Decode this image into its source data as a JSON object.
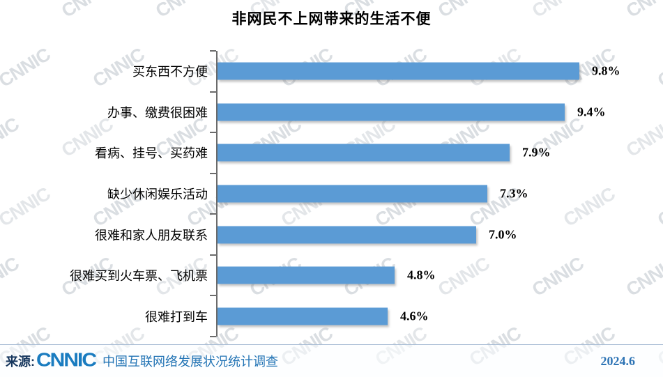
{
  "title": "非网民不上网带来的生活不便",
  "chart_data": {
    "type": "bar",
    "orientation": "horizontal",
    "title": "非网民不上网带来的生活不便",
    "categories": [
      "买东西不方便",
      "办事、缴费很困难",
      "看病、挂号、买药难",
      "缺少休闲娱乐活动",
      "很难和家人朋友联系",
      "很难买到火车票、飞机票",
      "很难打到车"
    ],
    "values": [
      9.8,
      9.4,
      7.9,
      7.3,
      7.0,
      4.8,
      4.6
    ],
    "value_labels": [
      "9.8%",
      "9.4%",
      "7.9%",
      "7.3%",
      "7.0%",
      "4.8%",
      "4.6%"
    ],
    "xlabel": "",
    "ylabel": "",
    "xlim": [
      0,
      10.5
    ],
    "grid": false,
    "legend": false,
    "bar_color": "#5B9BD5"
  },
  "footer": {
    "source_label": "来源:",
    "logo_text": "CNNIC",
    "source_name": "中国互联网络发展状况统计调查",
    "date": "2024.6"
  },
  "watermark": {
    "text": "CNNIC"
  },
  "colors": {
    "bar": "#5B9BD5",
    "axis": "#6b6b6b",
    "source_label": "#17375e",
    "logo": "#1a7cc0",
    "source_name": "#2374b5",
    "date": "#2e74b5"
  }
}
